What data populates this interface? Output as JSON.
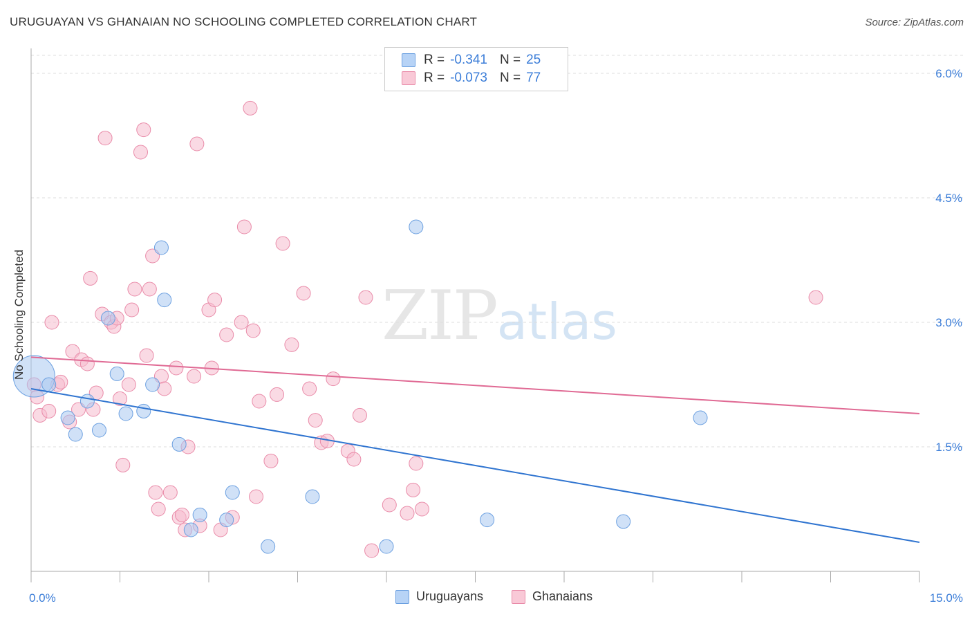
{
  "title": "URUGUAYAN VS GHANAIAN NO SCHOOLING COMPLETED CORRELATION CHART",
  "source": "Source: ZipAtlas.com",
  "watermark": {
    "zip": "ZIP",
    "atlas": "atlas"
  },
  "legend": {
    "rows": [
      {
        "r_label": "R =",
        "r_value": "-0.341",
        "n_label": "N =",
        "n_value": "25"
      },
      {
        "r_label": "R =",
        "r_value": "-0.073",
        "n_label": "N =",
        "n_value": "77"
      }
    ]
  },
  "bottom_legend": [
    "Uruguayans",
    "Ghanaians"
  ],
  "colors": {
    "uruguayan_fill": "#a9c8f0",
    "uruguayan_stroke": "#6a9fe0",
    "uruguayan_line": "#2f74d0",
    "ghanaian_fill": "#f6bccd",
    "ghanaian_stroke": "#e98aa8",
    "ghanaian_line": "#e06a94",
    "tick_label": "#3b7dd8",
    "grid": "#dddddd"
  },
  "chart_data": {
    "type": "scatter",
    "title": "URUGUAYAN VS GHANAIAN NO SCHOOLING COMPLETED CORRELATION CHART",
    "xlabel": "",
    "ylabel": "No Schooling Completed",
    "xlim": [
      0,
      15
    ],
    "ylim": [
      0,
      6.3
    ],
    "x_tick_labels": [
      "0.0%",
      "15.0%"
    ],
    "y_ticks": [
      1.5,
      3.0,
      4.5,
      6.0
    ],
    "y_tick_labels": [
      "1.5%",
      "3.0%",
      "4.5%",
      "6.0%"
    ],
    "grid": "horizontal dashed",
    "series": [
      {
        "name": "Uruguayans",
        "x": [
          0.05,
          0.3,
          0.75,
          0.95,
          1.15,
          1.3,
          0.62,
          1.45,
          1.6,
          1.9,
          2.05,
          2.2,
          2.25,
          2.5,
          2.7,
          2.85,
          3.3,
          3.4,
          4.0,
          4.75,
          6.0,
          6.5,
          7.7,
          10.0,
          11.3
        ],
        "y": [
          2.35,
          2.25,
          1.65,
          2.05,
          1.7,
          3.05,
          1.85,
          2.38,
          1.9,
          1.93,
          2.25,
          3.9,
          3.27,
          1.53,
          0.5,
          0.68,
          0.62,
          0.95,
          0.3,
          0.9,
          0.3,
          4.15,
          0.62,
          0.6,
          1.85
        ],
        "sizes": [
          30,
          10,
          10,
          10,
          10,
          10,
          10,
          10,
          10,
          10,
          10,
          10,
          10,
          10,
          10,
          10,
          10,
          10,
          10,
          10,
          10,
          10,
          10,
          10,
          10
        ]
      },
      {
        "name": "Ghanaians",
        "x": [
          0.05,
          0.1,
          0.15,
          0.3,
          0.35,
          0.45,
          0.5,
          0.65,
          0.7,
          0.8,
          0.85,
          0.95,
          1.0,
          1.05,
          1.1,
          1.2,
          1.25,
          1.35,
          1.4,
          1.45,
          1.5,
          1.55,
          1.65,
          1.7,
          1.75,
          1.85,
          1.9,
          1.95,
          2.0,
          2.05,
          2.1,
          2.15,
          2.2,
          2.25,
          2.35,
          2.45,
          2.5,
          2.55,
          2.6,
          2.65,
          2.75,
          2.8,
          2.85,
          3.0,
          3.05,
          3.1,
          3.2,
          3.3,
          3.4,
          3.55,
          3.6,
          3.7,
          3.75,
          3.8,
          3.85,
          4.05,
          4.15,
          4.25,
          4.4,
          4.6,
          4.7,
          4.8,
          4.9,
          5.0,
          5.1,
          5.35,
          5.45,
          5.55,
          5.65,
          5.75,
          6.05,
          6.2,
          6.35,
          6.45,
          6.5,
          6.6,
          13.25
        ],
        "y": [
          2.25,
          2.1,
          1.88,
          1.93,
          3.0,
          2.25,
          2.28,
          1.8,
          2.65,
          1.95,
          2.55,
          2.5,
          3.53,
          1.95,
          2.15,
          3.1,
          5.22,
          3.0,
          2.95,
          3.05,
          2.08,
          1.28,
          2.25,
          3.15,
          3.4,
          5.05,
          5.32,
          2.6,
          3.4,
          3.8,
          0.95,
          0.75,
          2.35,
          2.2,
          0.95,
          2.45,
          0.65,
          0.68,
          0.5,
          1.5,
          2.35,
          5.15,
          0.55,
          3.15,
          2.45,
          3.27,
          0.5,
          2.85,
          0.65,
          3.0,
          4.15,
          5.58,
          2.9,
          0.9,
          2.05,
          1.33,
          2.13,
          3.95,
          2.73,
          3.35,
          2.2,
          1.82,
          1.55,
          1.57,
          2.32,
          1.45,
          1.35,
          1.88,
          3.3,
          0.25,
          0.8,
          5.88,
          0.7,
          0.98,
          1.3,
          0.75,
          3.3
        ],
        "sizes": [
          10,
          10,
          10,
          10,
          10,
          10,
          10,
          10,
          10,
          10,
          10,
          10,
          10,
          10,
          10,
          10,
          10,
          10,
          10,
          10,
          10,
          10,
          10,
          10,
          10,
          10,
          10,
          10,
          10,
          10,
          10,
          10,
          10,
          10,
          10,
          10,
          10,
          10,
          10,
          10,
          10,
          10,
          10,
          10,
          10,
          10,
          10,
          10,
          10,
          10,
          10,
          10,
          10,
          10,
          10,
          10,
          10,
          10,
          10,
          10,
          10,
          10,
          10,
          10,
          10,
          10,
          10,
          10,
          10,
          10,
          10,
          10,
          10,
          10,
          10,
          10,
          10
        ]
      }
    ],
    "trendlines": [
      {
        "name": "Uruguayans",
        "x": [
          0,
          15
        ],
        "y": [
          2.2,
          0.35
        ]
      },
      {
        "name": "Ghanaians",
        "x": [
          0,
          15
        ],
        "y": [
          2.58,
          1.9
        ]
      }
    ]
  }
}
